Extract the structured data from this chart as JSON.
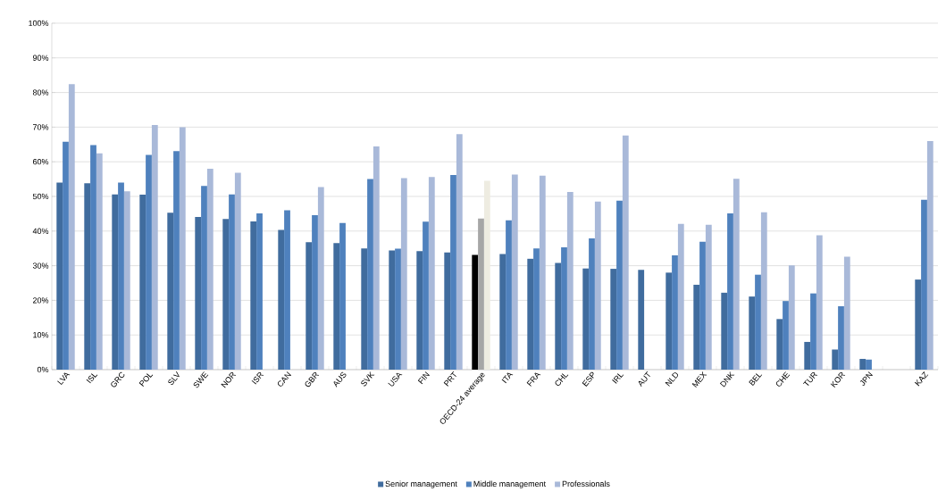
{
  "chart_data": {
    "type": "bar",
    "categories": [
      "LVA",
      "ISL",
      "GRC",
      "POL",
      "SLV",
      "SWE",
      "NOR",
      "ISR",
      "CAN",
      "GBR",
      "AUS",
      "SVK",
      "USA",
      "FIN",
      "PRT",
      "OECD-24 average",
      "ITA",
      "FRA",
      "CHL",
      "ESP",
      "IRL",
      "AUT",
      "NLD",
      "MEX",
      "DNK",
      "BEL",
      "CHE",
      "TUR",
      "KOR",
      "JPN",
      null,
      "KAZ"
    ],
    "series": [
      {
        "name": "Senior management",
        "color": "#406c9e",
        "colors": [
          "#406c9e",
          "#406c9e",
          "#406c9e",
          "#406c9e",
          "#406c9e",
          "#406c9e",
          "#406c9e",
          "#406c9e",
          "#406c9e",
          "#406c9e",
          "#406c9e",
          "#406c9e",
          "#406c9e",
          "#406c9e",
          "#406c9e",
          "#000000",
          "#406c9e",
          "#406c9e",
          "#406c9e",
          "#406c9e",
          "#406c9e",
          "#406c9e",
          "#406c9e",
          "#406c9e",
          "#406c9e",
          "#406c9e",
          "#406c9e",
          "#406c9e",
          "#406c9e",
          "#406c9e",
          "#406c9e",
          "#406c9e"
        ],
        "values": [
          54,
          53.8,
          50.6,
          50.5,
          45.3,
          44.1,
          43.5,
          42.8,
          40.3,
          36.8,
          36.5,
          35,
          34.4,
          34.2,
          33.8,
          33.1,
          33.4,
          32,
          30.8,
          29.2,
          29.1,
          28.8,
          28,
          24.5,
          22.2,
          21.1,
          14.6,
          8,
          5.8,
          3.1,
          null,
          26
        ]
      },
      {
        "name": "Middle management",
        "color": "#4f81bd",
        "colors": [
          "#4f81bd",
          "#4f81bd",
          "#4f81bd",
          "#4f81bd",
          "#4f81bd",
          "#4f81bd",
          "#4f81bd",
          "#4f81bd",
          "#4f81bd",
          "#4f81bd",
          "#4f81bd",
          "#4f81bd",
          "#4f81bd",
          "#4f81bd",
          "#4f81bd",
          "#a6a6a6",
          "#4f81bd",
          "#4f81bd",
          "#4f81bd",
          "#4f81bd",
          "#4f81bd",
          "#4f81bd",
          "#4f81bd",
          "#4f81bd",
          "#4f81bd",
          "#4f81bd",
          "#4f81bd",
          "#4f81bd",
          "#4f81bd",
          "#4f81bd",
          "#4f81bd",
          "#4f81bd"
        ],
        "values": [
          65.8,
          64.8,
          54,
          62,
          63.1,
          53,
          50.6,
          45.1,
          46,
          44.6,
          42.3,
          55,
          34.9,
          42.7,
          56.2,
          43.6,
          43.1,
          35,
          35.3,
          37.9,
          48.8,
          null,
          33,
          36.9,
          45.1,
          27.4,
          19.8,
          22,
          18.3,
          2.9,
          null,
          49
        ]
      },
      {
        "name": "Professionals",
        "color": "#a9b9d9",
        "colors": [
          "#a9b9d9",
          "#a9b9d9",
          "#a9b9d9",
          "#a9b9d9",
          "#a9b9d9",
          "#a9b9d9",
          "#a9b9d9",
          "#a9b9d9",
          "#a9b9d9",
          "#a9b9d9",
          "#a9b9d9",
          "#a9b9d9",
          "#a9b9d9",
          "#a9b9d9",
          "#a9b9d9",
          "#eeece1",
          "#a9b9d9",
          "#a9b9d9",
          "#a9b9d9",
          "#a9b9d9",
          "#a9b9d9",
          "#a9b9d9",
          "#a9b9d9",
          "#a9b9d9",
          "#a9b9d9",
          "#a9b9d9",
          "#a9b9d9",
          "#a9b9d9",
          "#a9b9d9",
          "#a9b9d9",
          "#a9b9d9",
          "#a9b9d9"
        ],
        "values": [
          82.4,
          62.4,
          51.5,
          70.6,
          70,
          58,
          56.8,
          null,
          null,
          52.7,
          null,
          64.4,
          55.3,
          55.6,
          68,
          54.5,
          56.3,
          56,
          51.3,
          48.5,
          67.6,
          null,
          42.1,
          41.8,
          55.1,
          45.4,
          30.1,
          38.8,
          32.6,
          null,
          null,
          66
        ]
      }
    ],
    "ylim": [
      0,
      100
    ],
    "yticks": [
      {
        "value": 0,
        "label": "0%"
      },
      {
        "value": 10,
        "label": "10%"
      },
      {
        "value": 20,
        "label": "20%"
      },
      {
        "value": 30,
        "label": "30%"
      },
      {
        "value": 40,
        "label": "40%"
      },
      {
        "value": 50,
        "label": "50%"
      },
      {
        "value": 60,
        "label": "60%"
      },
      {
        "value": 70,
        "label": "70%"
      },
      {
        "value": 80,
        "label": "80%"
      },
      {
        "value": 90,
        "label": "90%"
      },
      {
        "value": 100,
        "label": "100%"
      }
    ],
    "grid": "y",
    "legend": "bottom"
  }
}
